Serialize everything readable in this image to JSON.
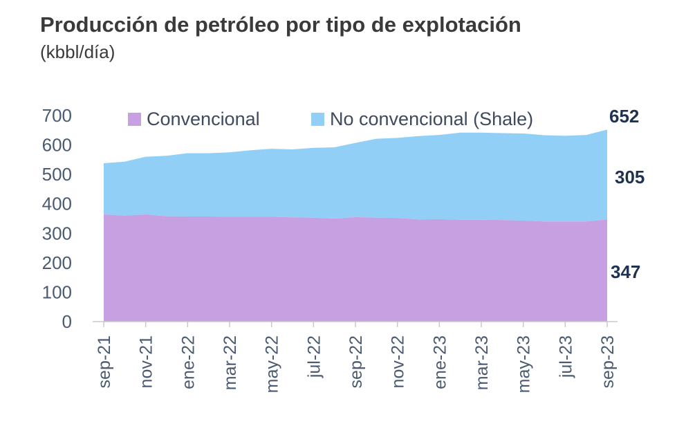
{
  "title": "Producción de petróleo por tipo de explotación",
  "subtitle": "(kbbl/día)",
  "chart_data": {
    "type": "area",
    "stacked": true,
    "x": [
      "sep-21",
      "oct-21",
      "nov-21",
      "dic-21",
      "ene-22",
      "feb-22",
      "mar-22",
      "abr-22",
      "may-22",
      "jun-22",
      "jul-22",
      "ago-22",
      "sep-22",
      "oct-22",
      "nov-22",
      "dic-22",
      "ene-23",
      "feb-23",
      "mar-23",
      "abr-23",
      "may-23",
      "jun-23",
      "jul-23",
      "ago-23",
      "sep-23"
    ],
    "xticks": [
      "sep-21",
      "nov-21",
      "ene-22",
      "mar-22",
      "may-22",
      "jul-22",
      "sep-22",
      "nov-22",
      "ene-23",
      "mar-23",
      "may-23",
      "jul-23",
      "sep-23"
    ],
    "series": [
      {
        "name": "Convencional",
        "color": "#c7a0e2",
        "values": [
          364,
          360,
          364,
          358,
          357,
          357,
          356,
          356,
          356,
          354,
          353,
          350,
          355,
          353,
          352,
          347,
          348,
          346,
          346,
          345,
          343,
          340,
          340,
          340,
          347
        ]
      },
      {
        "name": "No convencional (Shale)",
        "color": "#92cff7",
        "values": [
          174,
          183,
          196,
          205,
          215,
          215,
          219,
          226,
          231,
          231,
          237,
          242,
          252,
          268,
          272,
          283,
          286,
          296,
          296,
          295,
          296,
          293,
          291,
          294,
          305
        ]
      }
    ],
    "yticks": [
      0,
      100,
      200,
      300,
      400,
      500,
      600,
      700
    ],
    "ylim": [
      0,
      700
    ],
    "end_labels": {
      "total": "652",
      "shale": "305",
      "conventional": "347"
    },
    "legend_position": "top",
    "grid": false
  }
}
